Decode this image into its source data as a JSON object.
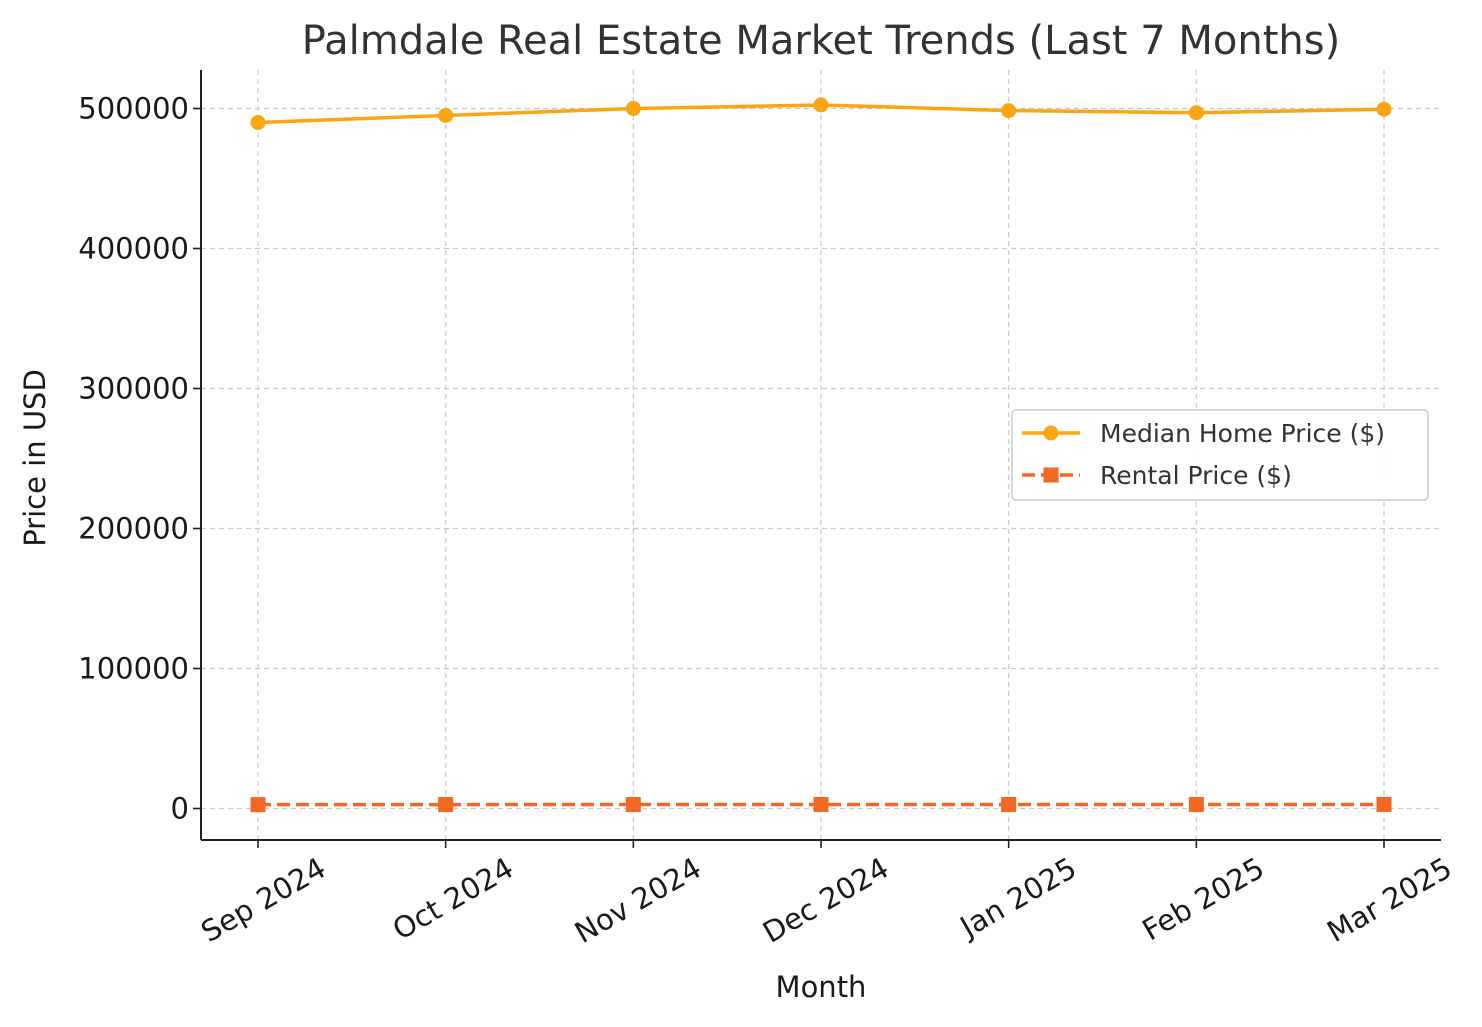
{
  "chart_data": {
    "type": "line",
    "title": "Palmdale Real Estate Market Trends (Last 7 Months)",
    "xlabel": "Month",
    "ylabel": "Price in USD",
    "categories": [
      "Sep 2024",
      "Oct 2024",
      "Nov 2024",
      "Dec 2024",
      "Jan 2025",
      "Feb 2025",
      "Mar 2025"
    ],
    "ylim": [
      -22500,
      527500
    ],
    "yticks": [
      0,
      100000,
      200000,
      300000,
      400000,
      500000
    ],
    "grid": true,
    "legend_position": "center-right",
    "series": [
      {
        "name": "Median Home Price ($)",
        "values": [
          490000,
          495000,
          500000,
          502500,
          498500,
          497000,
          499500
        ],
        "color": "#FAA511",
        "marker": "circle",
        "line_style": "solid"
      },
      {
        "name": "Rental Price ($)",
        "values": [
          2750,
          2800,
          2850,
          2900,
          2880,
          2870,
          2890
        ],
        "color": "#F26722",
        "marker": "square",
        "line_style": "dashed"
      }
    ]
  }
}
